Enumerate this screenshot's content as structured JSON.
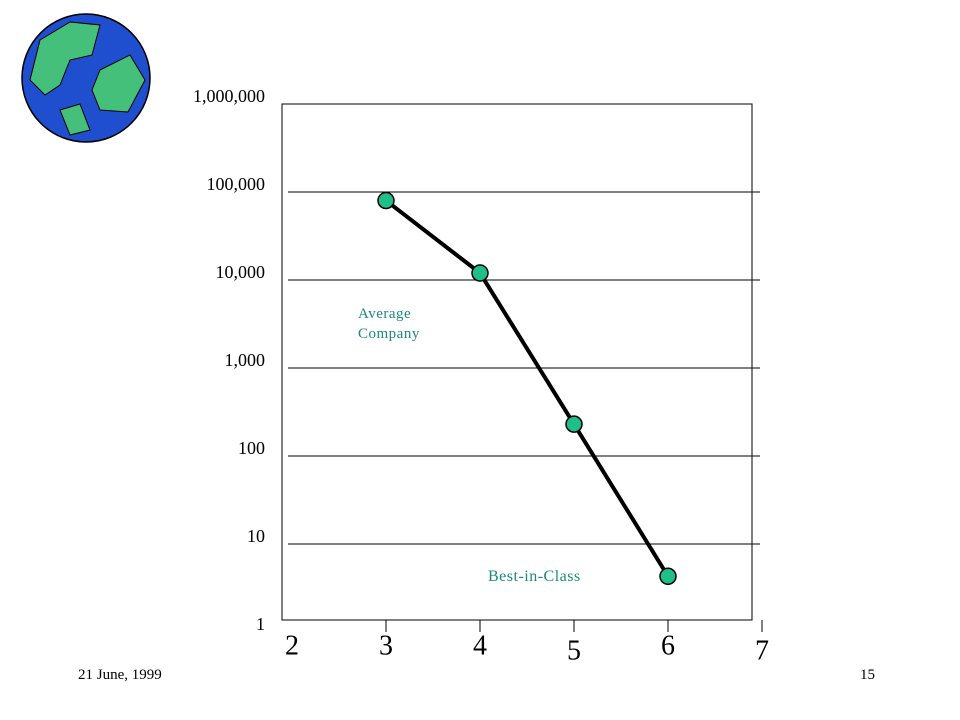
{
  "chart_data": {
    "type": "line",
    "log_y": true,
    "grid": true,
    "x": [
      3,
      4,
      5,
      6
    ],
    "series": [
      {
        "name": null,
        "color": "#1fbf8a",
        "line_color": "#000000",
        "values": [
          80000,
          12000,
          230,
          4.3
        ]
      }
    ],
    "xlim": [
      2,
      7
    ],
    "xticks": [
      2,
      3,
      4,
      5,
      6,
      7
    ],
    "ylim": [
      1,
      1000000
    ],
    "yticks": [
      1,
      10,
      100,
      {
        "value": 1000,
        "label": "1,000"
      },
      {
        "value": 10000,
        "label": "10,000"
      },
      {
        "value": 100000,
        "label": "100,000"
      },
      {
        "value": 1000000,
        "label": "1,000,000"
      }
    ],
    "annotations": [
      "Average Company",
      "Best-in-Class"
    ],
    "annotation_color": "#1a8a7a"
  },
  "footer": {
    "date": "21 June, 1999",
    "page": "15"
  }
}
